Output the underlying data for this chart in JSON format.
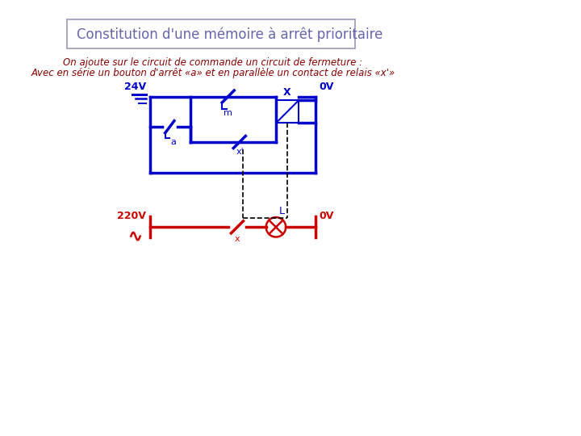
{
  "title": "Constitution d'une mémoire à arrêt prioritaire",
  "subtitle_line1": "On ajoute sur le circuit de commande un circuit de fermeture :",
  "subtitle_line2": "Avec en série un bouton d'arrêt «a» et en parallèle un contact de relais «x'»",
  "title_color": "#6666AA",
  "subtitle_color": "#880000",
  "blue": "#0000CC",
  "red": "#CC0000",
  "bg_color": "#FFFFFF",
  "label_24V": "24V",
  "label_0V_top": "0V",
  "label_220V": "220V",
  "label_0V_bot": "0V",
  "label_a": "a",
  "label_m": "m",
  "label_X": "X",
  "label_xprime": "x'",
  "label_x": "x",
  "label_L": "L"
}
